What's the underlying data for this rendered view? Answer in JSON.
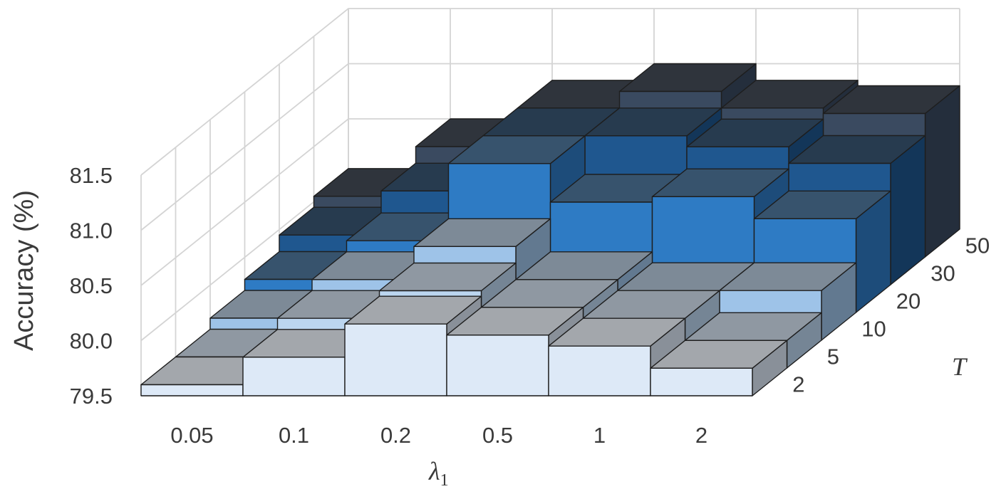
{
  "chart_data": {
    "type": "bar3d",
    "title": "",
    "x_label": {
      "symbol": "λ",
      "subscript": "1"
    },
    "y_label": "T",
    "z_label": "Accuracy (%)",
    "x_categories": [
      "0.05",
      "0.1",
      "0.2",
      "0.5",
      "1",
      "2"
    ],
    "y_categories": [
      "2",
      "5",
      "10",
      "20",
      "30",
      "50"
    ],
    "z_ticks": [
      "79.5",
      "80.0",
      "80.5",
      "81.0",
      "81.5"
    ],
    "zlim": [
      79.5,
      81.5
    ],
    "values": [
      [
        79.6,
        79.85,
        80.15,
        80.05,
        79.95,
        79.75
      ],
      [
        79.6,
        79.95,
        80.2,
        80.05,
        79.95,
        79.75
      ],
      [
        79.7,
        80.05,
        80.35,
        80.05,
        79.95,
        79.95
      ],
      [
        79.8,
        80.15,
        80.85,
        80.5,
        80.55,
        80.35
      ],
      [
        79.95,
        80.35,
        80.85,
        80.85,
        80.75,
        80.6
      ],
      [
        80.05,
        80.5,
        80.85,
        81.0,
        80.85,
        80.8
      ]
    ],
    "series_colors": [
      "#dde9f7",
      "#bcd6f0",
      "#9ec3e8",
      "#2e7bc4",
      "#1f578f",
      "#3a4a60"
    ],
    "grid": true
  }
}
